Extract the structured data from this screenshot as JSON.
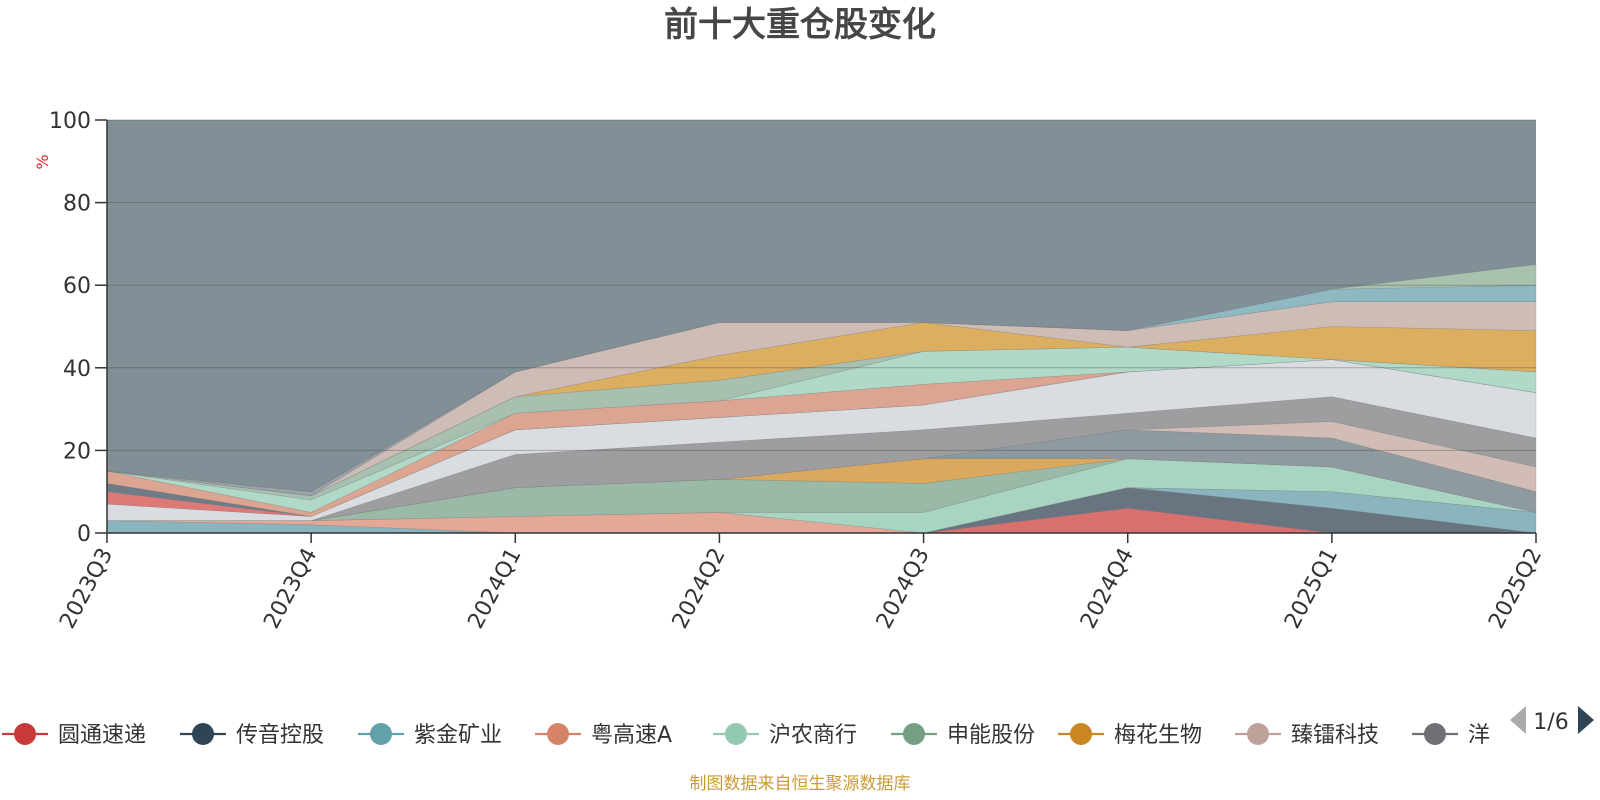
{
  "chart_data": {
    "type": "area",
    "title": "前十大重仓股变化",
    "ylabel": "%",
    "ylim": [
      0,
      100
    ],
    "yticks": [
      0,
      20,
      40,
      60,
      80,
      100
    ],
    "grid": true,
    "stacked": true,
    "categories": [
      "2023Q3",
      "2023Q4",
      "2024Q1",
      "2024Q2",
      "2024Q3",
      "2024Q4",
      "2025Q1",
      "2025Q2"
    ],
    "series": [
      {
        "name": "圆通速递",
        "color": "#d9706e",
        "values": [
          0,
          0,
          0,
          0,
          0,
          6,
          0,
          0
        ]
      },
      {
        "name": "传音控股",
        "color": "#687580",
        "values": [
          0,
          0,
          0,
          0,
          0,
          5,
          6,
          0
        ]
      },
      {
        "name": "紫金矿业",
        "color": "#8ab5bf",
        "values": [
          3,
          2,
          0,
          0,
          0,
          0,
          4,
          5
        ]
      },
      {
        "name": "粤高速A",
        "color": "#e3a896",
        "values": [
          0,
          1,
          4,
          5,
          0,
          0,
          0,
          0
        ]
      },
      {
        "name": "沪农商行",
        "color": "#a8d5c2",
        "values": [
          0,
          0,
          0,
          0,
          5,
          7,
          6,
          0
        ]
      },
      {
        "name": "申能股份",
        "color": "#9ab9a6",
        "values": [
          0,
          0,
          7,
          8,
          7,
          0,
          0,
          0
        ]
      },
      {
        "name": "梅花生物",
        "color": "#daa95e",
        "values": [
          0,
          0,
          0,
          0,
          6,
          0,
          0,
          0
        ]
      },
      {
        "name": "臻镭科技",
        "color": "#8f99a0",
        "values": [
          0,
          0,
          0,
          0,
          0,
          7,
          7,
          5
        ]
      },
      {
        "name": "",
        "color": "#d2bcb6",
        "values": [
          0,
          0,
          0,
          0,
          0,
          0,
          4,
          6
        ]
      },
      {
        "name": "",
        "color": "#9e9ea0",
        "values": [
          0,
          0,
          8,
          9,
          7,
          4,
          6,
          7
        ]
      },
      {
        "name": "",
        "color": "#d9dde2",
        "values": [
          4,
          1,
          6,
          6,
          6,
          10,
          9,
          11
        ]
      },
      {
        "name": "",
        "color": "#dd7a77",
        "values": [
          3,
          0,
          0,
          0,
          0,
          0,
          0,
          0
        ]
      },
      {
        "name": "",
        "color": "#6e7c87",
        "values": [
          2,
          0,
          0,
          0,
          0,
          0,
          0,
          0
        ]
      },
      {
        "name": "",
        "color": "#dca591",
        "values": [
          3,
          1,
          4,
          4,
          5,
          0,
          0,
          0
        ]
      },
      {
        "name": "",
        "color": "#b0d9c8",
        "values": [
          0,
          3,
          0,
          0,
          8,
          6,
          0,
          5
        ]
      },
      {
        "name": "",
        "color": "#a7c0b0",
        "values": [
          0,
          1,
          4,
          5,
          0,
          0,
          0,
          0
        ]
      },
      {
        "name": "",
        "color": "#dcae60",
        "values": [
          0,
          0,
          0,
          6,
          7,
          0,
          8,
          10
        ]
      },
      {
        "name": "",
        "color": "#cebdb7",
        "values": [
          0,
          0,
          6,
          8,
          0,
          4,
          6,
          7
        ]
      },
      {
        "name": "",
        "color": "#99a2a8",
        "values": [
          0,
          1,
          0,
          0,
          0,
          0,
          0,
          0
        ]
      },
      {
        "name": "",
        "color": "#8eb9c3",
        "values": [
          0,
          0,
          0,
          0,
          0,
          0,
          3,
          4
        ]
      },
      {
        "name": "",
        "color": "#a9c2ad",
        "values": [
          0,
          0,
          0,
          0,
          0,
          0,
          0,
          5
        ]
      }
    ],
    "remainder_color": "#818f97"
  },
  "legend": {
    "items": [
      {
        "name": "圆通速递",
        "color": "#c8393a"
      },
      {
        "name": "传音控股",
        "color": "#2f4556"
      },
      {
        "name": "紫金矿业",
        "color": "#62a0aa"
      },
      {
        "name": "粤高速A",
        "color": "#d68265"
      },
      {
        "name": "沪农商行",
        "color": "#93c9b0"
      },
      {
        "name": "申能股份",
        "color": "#749f83"
      },
      {
        "name": "梅花生物",
        "color": "#ca8622"
      },
      {
        "name": "臻镭科技",
        "color": "#bea29a"
      },
      {
        "name": "洋",
        "color": "#6e7076"
      }
    ],
    "page_indicator": "1/6"
  },
  "footer": {
    "source_note": "制图数据来自恒生聚源数据库"
  }
}
